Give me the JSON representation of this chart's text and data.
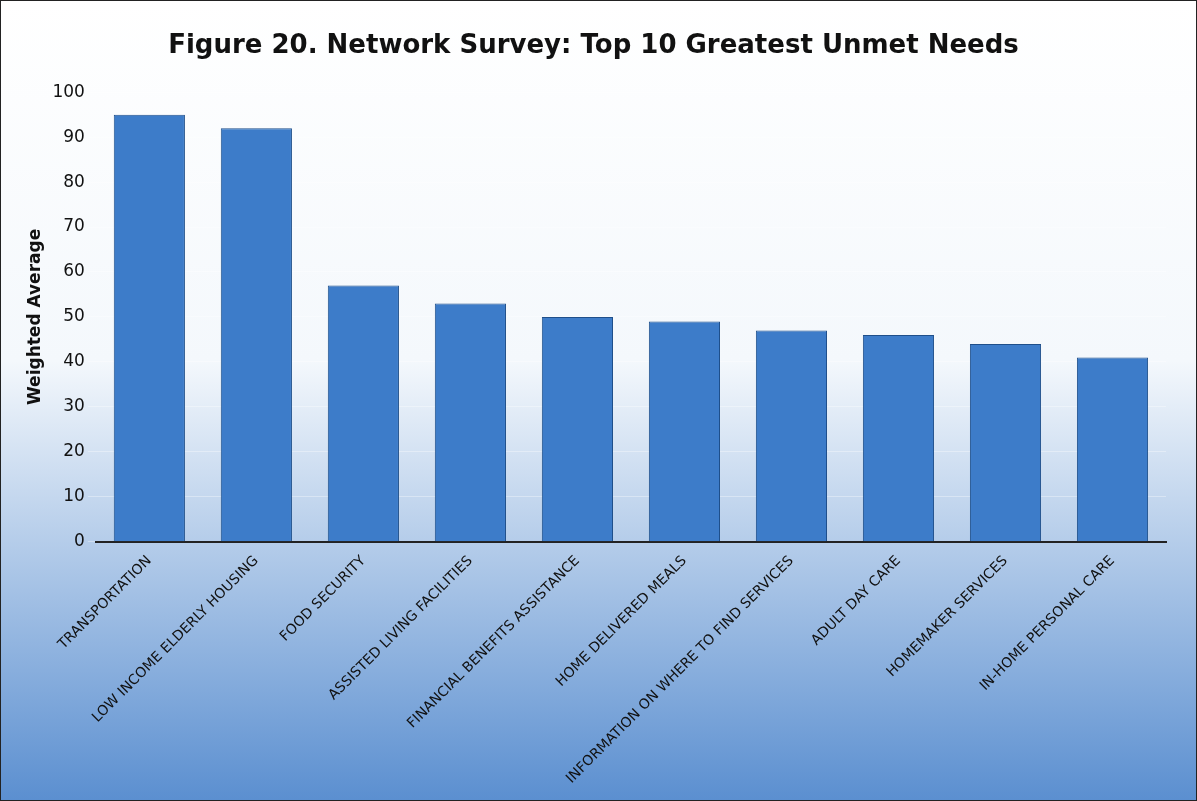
{
  "chart_data": {
    "type": "bar",
    "title": "Figure 20. Network Survey: Top 10 Greatest Unmet Needs",
    "ylabel": "Weighted Average",
    "categories": [
      "TRANSPORTATION",
      "LOW INCOME ELDERLY HOUSING",
      "FOOD SECURITY",
      "ASSISTED LIVING FACILITIES",
      "FINANCIAL BENEFITS ASSISTANCE",
      "HOME DELIVERED MEALS",
      "INFORMATION ON WHERE TO FIND SERVICES",
      "ADULT DAY CARE",
      "HOMEMAKER SERVICES",
      "IN-HOME PERSONAL CARE"
    ],
    "values": [
      95,
      92,
      57,
      53,
      50,
      49,
      47,
      46,
      44,
      41
    ],
    "color": "#3d7cc9",
    "ylim": [
      0,
      100
    ],
    "yticks": [
      0,
      10,
      20,
      30,
      40,
      50,
      60,
      70,
      80,
      90,
      100
    ],
    "grid": "y",
    "legend": false
  }
}
